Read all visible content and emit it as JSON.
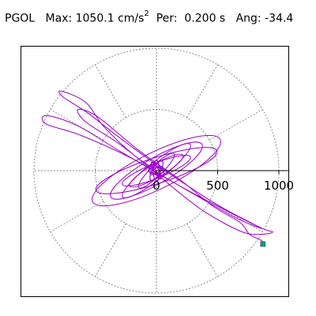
{
  "header": {
    "station": "PGOL",
    "max_label": "Max:",
    "max_value": "1050.1",
    "units_base": "cm/s",
    "units_exp": "2",
    "per_label": "Per:",
    "per_value": "0.200 s",
    "ang_label": "Ang:",
    "ang_value": "-34.4"
  },
  "colors": {
    "trace": "#9a00c8",
    "marker": "#1a9a7a",
    "grid": "#888888",
    "axis": "#000000"
  },
  "chart_data": {
    "type": "scatter",
    "subtype": "polar-orbit",
    "title": "PGOL  Max: 1050.1 cm/s2  Per:  0.200 s  Ang: -34.4",
    "radial_ticks": [
      0,
      500,
      1000
    ],
    "tick_labels": [
      "0",
      "500",
      "1000"
    ],
    "rings": [
      500,
      1000
    ],
    "spokes_deg": [
      0,
      30,
      60,
      90,
      120,
      150,
      180,
      210,
      240,
      270,
      300,
      330
    ],
    "grid": true,
    "peak_angle_deg": -34.4,
    "peak_value": 1050.1,
    "peak_point": {
      "x": 870,
      "y": -600
    },
    "orbit_ellipses": [
      {
        "a": 580,
        "b": 150,
        "rot": -26
      },
      {
        "a": 520,
        "b": 105,
        "rot": -18
      },
      {
        "a": 430,
        "b": 105,
        "rot": -30
      },
      {
        "a": 350,
        "b": 70,
        "rot": -38
      },
      {
        "a": 300,
        "b": 60,
        "rot": -22
      },
      {
        "a": 250,
        "b": 55,
        "rot": -30
      },
      {
        "a": 200,
        "b": 45,
        "rot": -44
      }
    ],
    "orbit_path": [
      [
        0,
        0
      ],
      [
        -60,
        40
      ],
      [
        -200,
        140
      ],
      [
        -430,
        360
      ],
      [
        -580,
        560
      ],
      [
        -780,
        650
      ],
      [
        -760,
        600
      ],
      [
        -560,
        470
      ],
      [
        -250,
        230
      ],
      [
        100,
        -20
      ],
      [
        500,
        -280
      ],
      [
        780,
        -430
      ],
      [
        850,
        -470
      ],
      [
        640,
        -380
      ],
      [
        250,
        -160
      ],
      [
        -300,
        160
      ],
      [
        -650,
        370
      ],
      [
        -900,
        450
      ],
      [
        -900,
        380
      ],
      [
        -620,
        290
      ],
      [
        -200,
        100
      ],
      [
        200,
        -130
      ],
      [
        520,
        -300
      ],
      [
        860,
        -470
      ],
      [
        950,
        -500
      ],
      [
        860,
        -520
      ],
      [
        700,
        -500
      ],
      [
        400,
        -340
      ],
      [
        150,
        -150
      ],
      [
        -100,
        60
      ],
      [
        -320,
        230
      ],
      [
        -580,
        400
      ],
      [
        -640,
        500
      ],
      [
        -480,
        440
      ],
      [
        -150,
        170
      ],
      [
        200,
        -80
      ],
      [
        460,
        -290
      ],
      [
        680,
        -420
      ],
      [
        760,
        -520
      ],
      [
        840,
        -560
      ],
      [
        880,
        -590
      ],
      [
        870,
        -600
      ]
    ]
  }
}
